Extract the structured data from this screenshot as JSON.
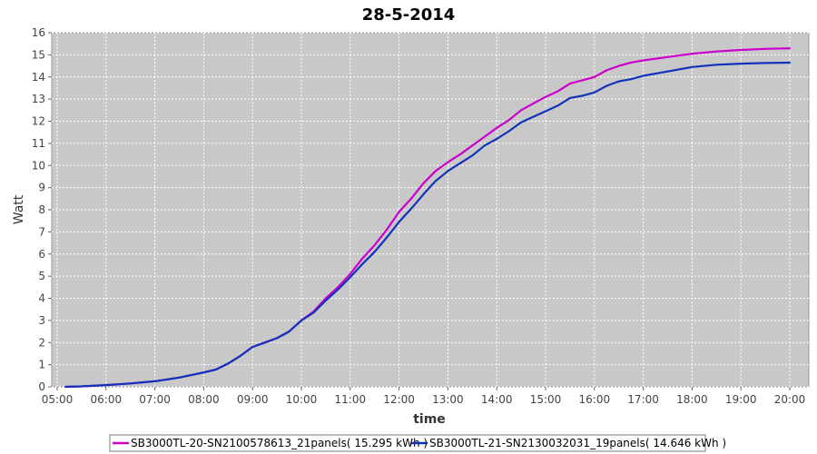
{
  "chart_data": {
    "type": "line",
    "title": "28-5-2014",
    "xlabel": "time",
    "ylabel": "Watt",
    "xticks": [
      "05:00",
      "06:00",
      "07:00",
      "08:00",
      "09:00",
      "10:00",
      "11:00",
      "12:00",
      "13:00",
      "14:00",
      "15:00",
      "16:00",
      "17:00",
      "18:00",
      "19:00",
      "20:00"
    ],
    "yticks": [
      0,
      1,
      2,
      3,
      4,
      5,
      6,
      7,
      8,
      9,
      10,
      11,
      12,
      13,
      14,
      15,
      16
    ],
    "xlim": [
      "05:00",
      "20:00"
    ],
    "ylim": [
      0,
      16
    ],
    "grid": true,
    "legend_position": "bottom",
    "background": "#c8c8c8",
    "series": [
      {
        "name": "SB3000TL-20-SN2100578613_21panels( 15.295 kWh )",
        "color": "#cc00cc",
        "x": [
          "05:10",
          "05:30",
          "06:00",
          "06:30",
          "07:00",
          "07:30",
          "08:00",
          "08:15",
          "08:30",
          "08:45",
          "09:00",
          "09:15",
          "09:30",
          "09:45",
          "10:00",
          "10:15",
          "10:30",
          "10:45",
          "11:00",
          "11:15",
          "11:30",
          "11:45",
          "12:00",
          "12:15",
          "12:30",
          "12:45",
          "13:00",
          "13:15",
          "13:30",
          "13:45",
          "14:00",
          "14:15",
          "14:30",
          "14:45",
          "15:00",
          "15:15",
          "15:30",
          "15:45",
          "16:00",
          "16:15",
          "16:30",
          "16:45",
          "17:00",
          "17:30",
          "18:00",
          "18:30",
          "19:00",
          "19:30",
          "20:00"
        ],
        "y": [
          0.0,
          0.02,
          0.08,
          0.15,
          0.25,
          0.42,
          0.65,
          0.78,
          1.05,
          1.4,
          1.8,
          2.0,
          2.2,
          2.5,
          3.0,
          3.4,
          4.0,
          4.5,
          5.1,
          5.8,
          6.4,
          7.1,
          7.9,
          8.5,
          9.2,
          9.75,
          10.15,
          10.5,
          10.9,
          11.3,
          11.7,
          12.05,
          12.5,
          12.8,
          13.1,
          13.35,
          13.7,
          13.85,
          14.0,
          14.3,
          14.5,
          14.65,
          14.75,
          14.9,
          15.05,
          15.15,
          15.22,
          15.27,
          15.295
        ]
      },
      {
        "name": "SB3000TL-21-SN2130032031_19panels( 14.646 kWh )",
        "color": "#1133bb",
        "x": [
          "05:10",
          "05:30",
          "06:00",
          "06:30",
          "07:00",
          "07:30",
          "08:00",
          "08:15",
          "08:30",
          "08:45",
          "09:00",
          "09:15",
          "09:30",
          "09:45",
          "10:00",
          "10:15",
          "10:30",
          "10:45",
          "11:00",
          "11:15",
          "11:30",
          "11:45",
          "12:00",
          "12:15",
          "12:30",
          "12:45",
          "13:00",
          "13:15",
          "13:30",
          "13:45",
          "14:00",
          "14:15",
          "14:30",
          "14:45",
          "15:00",
          "15:15",
          "15:30",
          "15:45",
          "16:00",
          "16:15",
          "16:30",
          "16:45",
          "17:00",
          "17:30",
          "18:00",
          "18:30",
          "19:00",
          "19:30",
          "20:00"
        ],
        "y": [
          0.0,
          0.02,
          0.08,
          0.15,
          0.25,
          0.42,
          0.65,
          0.78,
          1.05,
          1.4,
          1.8,
          2.0,
          2.2,
          2.5,
          3.0,
          3.35,
          3.9,
          4.4,
          4.95,
          5.55,
          6.1,
          6.75,
          7.45,
          8.05,
          8.7,
          9.3,
          9.75,
          10.1,
          10.45,
          10.9,
          11.2,
          11.55,
          11.95,
          12.2,
          12.45,
          12.7,
          13.05,
          13.15,
          13.3,
          13.6,
          13.8,
          13.9,
          14.05,
          14.25,
          14.45,
          14.55,
          14.6,
          14.63,
          14.646
        ]
      }
    ]
  }
}
